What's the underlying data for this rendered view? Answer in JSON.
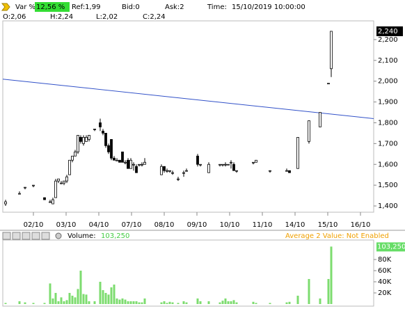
{
  "header": {
    "var_label": "Var %:",
    "var_value": "12,56 %",
    "ref": "Ref:1,99",
    "bid": "Bid:0",
    "ask": "Ask:2",
    "time_label": "Time:",
    "time": "15/10/2019 10:00:00",
    "open": "O:2,06",
    "high": "H:2,24",
    "low": "L:2,02",
    "close": "C:2,24"
  },
  "chart_data": [
    {
      "type": "candlestick",
      "x": [
        1,
        6,
        8,
        11,
        15,
        17,
        18,
        19,
        20,
        21,
        22,
        23,
        24,
        25,
        26,
        27,
        28,
        29,
        30,
        31,
        33,
        35,
        36,
        37,
        38,
        39,
        40,
        41,
        42,
        43,
        44,
        45,
        46,
        47,
        48,
        49,
        50,
        51,
        57,
        58,
        59,
        60,
        61,
        63,
        65,
        66,
        70,
        71,
        74,
        78,
        79,
        80,
        81,
        82,
        83,
        84,
        90,
        91,
        96,
        102,
        103,
        106,
        110,
        114,
        117,
        118
      ],
      "open": [
        1.41,
        1.46,
        1.49,
        1.5,
        1.44,
        1.42,
        1.41,
        1.44,
        1.52,
        1.51,
        1.51,
        1.52,
        1.55,
        1.62,
        1.64,
        1.66,
        1.73,
        1.7,
        1.71,
        1.72,
        1.77,
        1.8,
        1.76,
        1.75,
        1.69,
        1.72,
        1.63,
        1.62,
        1.62,
        1.66,
        1.61,
        1.62,
        1.58,
        1.6,
        1.59,
        1.6,
        1.6,
        1.6,
        1.55,
        1.59,
        1.57,
        1.57,
        1.56,
        1.53,
        1.56,
        1.57,
        1.64,
        1.6,
        1.56,
        1.6,
        1.6,
        1.6,
        1.6,
        1.61,
        1.6,
        1.57,
        1.61,
        1.61,
        1.57,
        1.57,
        1.57,
        1.58,
        1.71,
        1.78,
        1.99,
        2.06
      ],
      "high": [
        1.43,
        1.47,
        1.49,
        1.5,
        1.44,
        1.43,
        1.44,
        1.53,
        1.53,
        1.52,
        1.52,
        1.55,
        1.62,
        1.64,
        1.67,
        1.74,
        1.74,
        1.74,
        1.74,
        1.74,
        1.77,
        1.82,
        1.77,
        1.75,
        1.7,
        1.72,
        1.64,
        1.63,
        1.62,
        1.66,
        1.62,
        1.63,
        1.63,
        1.61,
        1.6,
        1.6,
        1.61,
        1.63,
        1.6,
        1.59,
        1.58,
        1.57,
        1.57,
        1.54,
        1.57,
        1.58,
        1.65,
        1.6,
        1.61,
        1.6,
        1.6,
        1.61,
        1.6,
        1.62,
        1.61,
        1.57,
        1.61,
        1.62,
        1.57,
        1.58,
        1.57,
        1.73,
        1.81,
        1.85,
        1.99,
        2.24
      ],
      "low": [
        1.4,
        1.46,
        1.48,
        1.49,
        1.43,
        1.42,
        1.41,
        1.44,
        1.51,
        1.51,
        1.5,
        1.51,
        1.55,
        1.61,
        1.64,
        1.65,
        1.7,
        1.69,
        1.71,
        1.71,
        1.76,
        1.76,
        1.74,
        1.68,
        1.65,
        1.62,
        1.62,
        1.62,
        1.61,
        1.61,
        1.6,
        1.58,
        1.58,
        1.57,
        1.56,
        1.59,
        1.59,
        1.6,
        1.55,
        1.56,
        1.56,
        1.56,
        1.55,
        1.52,
        1.54,
        1.57,
        1.59,
        1.59,
        1.56,
        1.59,
        1.59,
        1.59,
        1.6,
        1.58,
        1.57,
        1.56,
        1.6,
        1.61,
        1.56,
        1.57,
        1.56,
        1.58,
        1.7,
        1.78,
        1.99,
        2.02
      ],
      "close": [
        1.42,
        1.46,
        1.49,
        1.5,
        1.43,
        1.42,
        1.43,
        1.52,
        1.53,
        1.51,
        1.52,
        1.54,
        1.62,
        1.64,
        1.66,
        1.74,
        1.71,
        1.73,
        1.73,
        1.74,
        1.77,
        1.78,
        1.75,
        1.69,
        1.66,
        1.63,
        1.62,
        1.62,
        1.61,
        1.61,
        1.61,
        1.58,
        1.62,
        1.6,
        1.56,
        1.6,
        1.6,
        1.61,
        1.59,
        1.57,
        1.57,
        1.57,
        1.56,
        1.53,
        1.56,
        1.57,
        1.6,
        1.6,
        1.6,
        1.6,
        1.6,
        1.6,
        1.6,
        1.61,
        1.57,
        1.57,
        1.61,
        1.62,
        1.57,
        1.57,
        1.56,
        1.73,
        1.81,
        1.85,
        1.99,
        2.24
      ],
      "xlim": [
        0,
        133.25
      ],
      "ylim": [
        1.37,
        2.29
      ],
      "xticks": [
        {
          "value": 11,
          "label": "02/10"
        },
        {
          "value": 22.75,
          "label": "03/10"
        },
        {
          "value": 34.5,
          "label": "04/10"
        },
        {
          "value": 46.25,
          "label": "07/10"
        },
        {
          "value": 58,
          "label": "08/10"
        },
        {
          "value": 69.75,
          "label": "09/10"
        },
        {
          "value": 81.5,
          "label": "10/10"
        },
        {
          "value": 93.25,
          "label": "11/10"
        },
        {
          "value": 105,
          "label": "14/10"
        },
        {
          "value": 116.75,
          "label": "15/10"
        },
        {
          "value": 128.5,
          "label": "16/10"
        }
      ],
      "yticks": [
        {
          "value": 1.4,
          "label": "1,400"
        },
        {
          "value": 1.5,
          "label": "1,500"
        },
        {
          "value": 1.6,
          "label": "1,600"
        },
        {
          "value": 1.7,
          "label": "1,700"
        },
        {
          "value": 1.8,
          "label": "1,800"
        },
        {
          "value": 1.9,
          "label": "1,900"
        },
        {
          "value": 2.0,
          "label": "2,000"
        },
        {
          "value": 2.1,
          "label": "2,100"
        },
        {
          "value": 2.2,
          "label": "2,200"
        }
      ],
      "last_price": {
        "value": 2.24,
        "label": "2,240"
      },
      "trendline": {
        "x": [
          0,
          133.25
        ],
        "y": [
          2.01,
          1.82
        ],
        "color": "#3050c8"
      }
    },
    {
      "type": "bar",
      "title": "Volume:",
      "note": "Average 2 Value:  Not Enabled",
      "color": "#7ddc6f",
      "values": [
        2000,
        5000,
        3000,
        2000,
        2000,
        37000,
        10000,
        20000,
        5000,
        12000,
        5000,
        7000,
        20000,
        15000,
        12000,
        27000,
        60000,
        18000,
        17000,
        5000,
        5000,
        40000,
        25000,
        20000,
        17000,
        30000,
        35000,
        10000,
        8000,
        10000,
        8000,
        5000,
        5000,
        5000,
        5000,
        3000,
        3000,
        10000,
        3000,
        5000,
        2000,
        4000,
        3000,
        2000,
        5000,
        3000,
        10000,
        5000,
        5000,
        3000,
        6000,
        10000,
        5000,
        5000,
        7000,
        3000,
        4000,
        2000,
        2000,
        3000,
        4000,
        15000,
        45000,
        10000,
        45000,
        103250
      ],
      "ylim": [
        0,
        115000
      ],
      "yticks": [
        {
          "value": 20000,
          "label": "20K"
        },
        {
          "value": 40000,
          "label": "40K"
        },
        {
          "value": 60000,
          "label": "60K"
        },
        {
          "value": 80000,
          "label": "80K"
        }
      ],
      "current": {
        "value": 103250,
        "label": "103,250"
      }
    }
  ]
}
